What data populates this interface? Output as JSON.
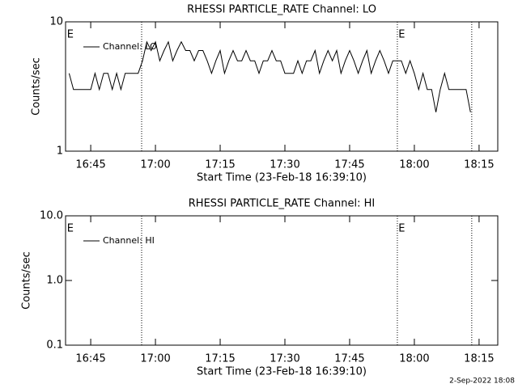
{
  "chart_data": [
    {
      "type": "line",
      "title": "RHESSI PARTICLE_RATE Channel: LO",
      "x_label": "Start Time (23-Feb-18 16:39:10)",
      "y_label": "Counts/sec",
      "log_y": true,
      "ylim": [
        1,
        10
      ],
      "yticks": [
        1,
        10
      ],
      "xlim": [
        999.17,
        1099.33
      ],
      "xticks": [
        {
          "value": 1005,
          "label": "16:45"
        },
        {
          "value": 1020,
          "label": "17:00"
        },
        {
          "value": 1035,
          "label": "17:15"
        },
        {
          "value": 1050,
          "label": "17:30"
        },
        {
          "value": 1065,
          "label": "17:45"
        },
        {
          "value": 1080,
          "label": "18:00"
        },
        {
          "value": 1095,
          "label": "18:15"
        }
      ],
      "vlines": [
        1016.8,
        1076.06,
        1093.3
      ],
      "annotations": [
        {
          "text": "E",
          "x": 999.5
        },
        {
          "text": "E",
          "x": 1076.3
        }
      ],
      "x": [
        1000,
        1001,
        1002,
        1003,
        1004,
        1005,
        1006,
        1007,
        1008,
        1009,
        1010,
        1011,
        1012,
        1013,
        1014,
        1015,
        1016,
        1017,
        1018,
        1019,
        1020,
        1021,
        1022,
        1023,
        1024,
        1025,
        1026,
        1027,
        1028,
        1029,
        1030,
        1031,
        1032,
        1033,
        1034,
        1035,
        1036,
        1037,
        1038,
        1039,
        1040,
        1041,
        1042,
        1043,
        1044,
        1045,
        1046,
        1047,
        1048,
        1049,
        1050,
        1051,
        1052,
        1053,
        1054,
        1055,
        1056,
        1057,
        1058,
        1059,
        1060,
        1061,
        1062,
        1063,
        1064,
        1065,
        1066,
        1067,
        1068,
        1069,
        1070,
        1071,
        1072,
        1073,
        1074,
        1075,
        1076,
        1077,
        1078,
        1079,
        1080,
        1081,
        1082,
        1083,
        1084,
        1085,
        1086,
        1087,
        1088,
        1089,
        1090,
        1091,
        1092,
        1093
      ],
      "series": [
        {
          "name": "Channel: LO",
          "color": "#000000",
          "values": [
            4,
            3,
            3,
            3,
            3,
            3,
            4,
            3,
            4,
            4,
            3,
            4,
            3,
            4,
            4,
            4,
            4,
            5,
            7,
            6,
            7,
            5,
            6,
            7,
            5,
            6,
            7,
            6,
            6,
            5,
            6,
            6,
            5,
            4,
            5,
            6,
            4,
            5,
            6,
            5,
            5,
            6,
            5,
            5,
            4,
            5,
            5,
            6,
            5,
            5,
            4,
            4,
            4,
            5,
            4,
            5,
            5,
            6,
            4,
            5,
            6,
            5,
            6,
            4,
            5,
            6,
            5,
            4,
            5,
            6,
            4,
            5,
            6,
            5,
            4,
            5,
            5,
            5,
            4,
            5,
            4,
            3,
            4,
            3,
            3,
            2,
            3,
            4,
            3,
            3,
            3,
            3,
            3,
            2
          ]
        }
      ]
    },
    {
      "type": "line",
      "title": "RHESSI PARTICLE_RATE Channel: HI",
      "x_label": "Start Time (23-Feb-18 16:39:10)",
      "y_label": "Counts/sec",
      "log_y": true,
      "ylim": [
        0.1,
        10
      ],
      "yticks": [
        0.1,
        {
          "value": 1,
          "label": "1.0"
        },
        {
          "value": 10,
          "label": "10.0"
        }
      ],
      "xlim": [
        999.17,
        1099.33
      ],
      "xticks": [
        {
          "value": 1005,
          "label": "16:45"
        },
        {
          "value": 1020,
          "label": "17:00"
        },
        {
          "value": 1035,
          "label": "17:15"
        },
        {
          "value": 1050,
          "label": "17:30"
        },
        {
          "value": 1065,
          "label": "17:45"
        },
        {
          "value": 1080,
          "label": "18:00"
        },
        {
          "value": 1095,
          "label": "18:15"
        }
      ],
      "vlines": [
        1016.8,
        1076.06,
        1093.3
      ],
      "annotations": [
        {
          "text": "E",
          "x": 999.5
        },
        {
          "text": "E",
          "x": 1076.3
        }
      ],
      "x": [],
      "series": [
        {
          "name": "Channel: HI",
          "color": "#000000",
          "values": []
        }
      ]
    }
  ],
  "footer": "2-Sep-2022 18:08"
}
